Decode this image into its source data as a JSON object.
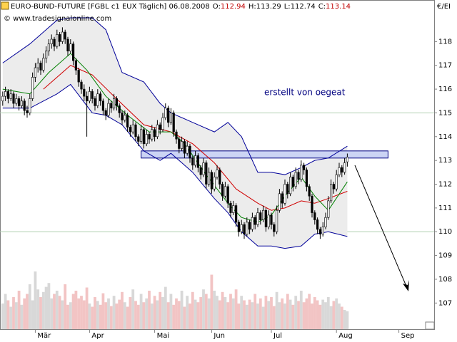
{
  "chart_data": {
    "type": "candlestick",
    "title": "EURO-BUND-FUTURE [FGBL c1 EUX  Täglich] 06.08.2008",
    "header": [
      {
        "label": "O:",
        "value": 112.94,
        "color": "#c00000"
      },
      {
        "label": "H:",
        "value": 113.29,
        "color": "#000000"
      },
      {
        "label": "L:",
        "value": 112.74,
        "color": "#000000"
      },
      {
        "label": "C:",
        "value": 113.14,
        "color": "#c00000"
      }
    ],
    "subtitle": "© www.tradesignalonline.com",
    "y_unit": "€/EI",
    "annotation": "erstellt von oegeat",
    "xlim": [
      0,
      160
    ],
    "xticks": [
      {
        "value": 13,
        "label": "Mär"
      },
      {
        "value": 33,
        "label": "Apr"
      },
      {
        "value": 57,
        "label": "Mai"
      },
      {
        "value": 78,
        "label": "Jun"
      },
      {
        "value": 100,
        "label": "Jul"
      },
      {
        "value": 124,
        "label": "Aug"
      },
      {
        "value": 147,
        "label": "Sep"
      }
    ],
    "ylim": [
      105.9,
      119.75
    ],
    "yticks": [
      107,
      108,
      109,
      110,
      111,
      112,
      113,
      114,
      115,
      116,
      117,
      118
    ],
    "grid": [
      110,
      115
    ],
    "resistance_zone": {
      "xlim": [
        52,
        143
      ],
      "ylim": [
        113.1,
        113.4
      ]
    },
    "ohlc": [
      [
        115.5,
        115.9,
        115.3,
        115.7
      ],
      [
        115.7,
        116.1,
        115.5,
        115.9
      ],
      [
        115.9,
        116.0,
        115.4,
        115.6
      ],
      [
        115.6,
        116.0,
        115.5,
        115.8
      ],
      [
        115.8,
        115.9,
        115.2,
        115.4
      ],
      [
        115.4,
        115.8,
        115.3,
        115.6
      ],
      [
        115.6,
        115.7,
        115.1,
        115.3
      ],
      [
        115.3,
        115.7,
        115.2,
        115.5
      ],
      [
        115.5,
        115.6,
        114.9,
        115.1
      ],
      [
        115.1,
        115.3,
        114.8,
        115.0
      ],
      [
        115.0,
        115.8,
        114.9,
        115.6
      ],
      [
        115.6,
        116.7,
        115.5,
        116.5
      ],
      [
        116.5,
        117.1,
        116.3,
        116.9
      ],
      [
        116.9,
        117.3,
        116.7,
        117.1
      ],
      [
        117.1,
        117.2,
        116.6,
        116.8
      ],
      [
        116.8,
        117.5,
        116.7,
        117.3
      ],
      [
        117.3,
        117.8,
        117.1,
        117.6
      ],
      [
        117.6,
        118.1,
        117.4,
        117.9
      ],
      [
        117.9,
        118.3,
        117.7,
        118.1
      ],
      [
        118.1,
        118.2,
        117.6,
        117.8
      ],
      [
        117.8,
        118.5,
        117.7,
        118.3
      ],
      [
        118.3,
        118.4,
        117.8,
        118.0
      ],
      [
        118.0,
        118.6,
        117.9,
        118.4
      ],
      [
        118.4,
        118.5,
        117.9,
        118.1
      ],
      [
        118.1,
        118.2,
        117.4,
        117.6
      ],
      [
        117.6,
        118.1,
        117.5,
        117.9
      ],
      [
        117.9,
        118.0,
        117.0,
        117.2
      ],
      [
        117.2,
        117.3,
        116.6,
        116.8
      ],
      [
        116.8,
        116.9,
        116.1,
        116.3
      ],
      [
        116.3,
        116.4,
        115.8,
        116.0
      ],
      [
        116.0,
        116.2,
        115.5,
        115.7
      ],
      [
        115.7,
        115.9,
        114.0,
        115.5
      ],
      [
        115.5,
        116.1,
        115.4,
        115.9
      ],
      [
        115.9,
        116.0,
        115.4,
        115.6
      ],
      [
        115.6,
        115.7,
        115.1,
        115.3
      ],
      [
        115.3,
        116.0,
        115.2,
        115.8
      ],
      [
        115.8,
        115.9,
        115.3,
        115.5
      ],
      [
        115.5,
        115.6,
        114.9,
        115.1
      ],
      [
        115.1,
        115.2,
        114.7,
        114.9
      ],
      [
        114.9,
        115.6,
        114.8,
        115.4
      ],
      [
        115.4,
        115.5,
        115.0,
        115.2
      ],
      [
        115.2,
        115.8,
        115.1,
        115.6
      ],
      [
        115.6,
        115.7,
        115.1,
        115.3
      ],
      [
        115.3,
        115.4,
        114.8,
        115.0
      ],
      [
        115.0,
        115.1,
        114.5,
        114.7
      ],
      [
        114.7,
        115.1,
        114.6,
        114.9
      ],
      [
        114.9,
        115.0,
        114.2,
        114.4
      ],
      [
        114.4,
        114.5,
        114.0,
        114.2
      ],
      [
        114.2,
        114.7,
        114.1,
        114.5
      ],
      [
        114.5,
        114.6,
        113.8,
        114.0
      ],
      [
        114.0,
        114.1,
        113.6,
        113.8
      ],
      [
        113.8,
        114.5,
        113.7,
        114.3
      ],
      [
        114.3,
        114.4,
        113.5,
        113.7
      ],
      [
        113.7,
        114.3,
        113.6,
        114.1
      ],
      [
        114.1,
        114.2,
        113.7,
        113.9
      ],
      [
        113.9,
        114.5,
        113.8,
        114.3
      ],
      [
        114.3,
        114.4,
        113.8,
        114.0
      ],
      [
        114.0,
        114.7,
        113.9,
        114.5
      ],
      [
        114.5,
        114.6,
        114.1,
        114.3
      ],
      [
        114.3,
        115.0,
        114.2,
        114.8
      ],
      [
        114.8,
        115.4,
        114.7,
        115.2
      ],
      [
        115.2,
        115.3,
        114.4,
        114.6
      ],
      [
        114.6,
        115.2,
        114.5,
        115.0
      ],
      [
        115.0,
        115.1,
        114.0,
        114.2
      ],
      [
        114.2,
        114.3,
        113.7,
        113.9
      ],
      [
        113.9,
        114.0,
        113.3,
        113.5
      ],
      [
        113.5,
        114.0,
        113.4,
        113.8
      ],
      [
        113.8,
        113.9,
        113.1,
        113.3
      ],
      [
        113.3,
        113.8,
        113.2,
        113.6
      ],
      [
        113.6,
        113.7,
        112.9,
        113.1
      ],
      [
        113.1,
        113.2,
        112.6,
        112.8
      ],
      [
        112.8,
        113.4,
        112.7,
        113.2
      ],
      [
        113.2,
        113.3,
        112.5,
        112.7
      ],
      [
        112.7,
        112.8,
        112.2,
        112.4
      ],
      [
        112.4,
        113.1,
        112.3,
        112.9
      ],
      [
        112.9,
        113.0,
        111.8,
        112.0
      ],
      [
        112.0,
        112.7,
        111.9,
        112.5
      ],
      [
        112.5,
        112.6,
        111.6,
        111.8
      ],
      [
        111.8,
        112.5,
        111.7,
        112.3
      ],
      [
        112.3,
        112.8,
        112.2,
        112.6
      ],
      [
        112.6,
        112.7,
        111.8,
        112.0
      ],
      [
        112.0,
        112.1,
        111.3,
        111.5
      ],
      [
        111.5,
        112.1,
        111.4,
        111.9
      ],
      [
        111.9,
        112.0,
        111.0,
        111.2
      ],
      [
        111.2,
        111.3,
        110.6,
        110.8
      ],
      [
        110.8,
        111.3,
        110.7,
        111.1
      ],
      [
        111.1,
        111.2,
        110.2,
        110.4
      ],
      [
        110.4,
        110.5,
        109.8,
        110.0
      ],
      [
        110.0,
        110.5,
        109.9,
        110.3
      ],
      [
        110.3,
        110.4,
        109.7,
        109.9
      ],
      [
        109.9,
        110.6,
        109.8,
        110.4
      ],
      [
        110.4,
        110.5,
        109.9,
        110.1
      ],
      [
        110.1,
        110.8,
        110.0,
        110.6
      ],
      [
        110.6,
        110.7,
        110.1,
        110.3
      ],
      [
        110.3,
        111.0,
        110.2,
        110.8
      ],
      [
        110.8,
        110.9,
        110.3,
        110.5
      ],
      [
        110.5,
        111.1,
        110.4,
        110.9
      ],
      [
        110.9,
        111.0,
        110.0,
        110.2
      ],
      [
        110.2,
        110.9,
        110.1,
        110.7
      ],
      [
        110.7,
        110.8,
        110.1,
        110.3
      ],
      [
        110.3,
        110.4,
        109.8,
        110.0
      ],
      [
        110.0,
        111.1,
        109.9,
        110.9
      ],
      [
        110.9,
        111.8,
        110.8,
        111.6
      ],
      [
        111.6,
        111.7,
        111.0,
        111.2
      ],
      [
        111.2,
        112.2,
        111.1,
        112.0
      ],
      [
        112.0,
        112.1,
        111.4,
        111.6
      ],
      [
        111.6,
        112.5,
        111.5,
        112.3
      ],
      [
        112.3,
        112.4,
        111.7,
        111.9
      ],
      [
        111.9,
        112.7,
        111.8,
        112.5
      ],
      [
        112.5,
        112.6,
        112.0,
        112.2
      ],
      [
        112.2,
        113.0,
        112.1,
        112.8
      ],
      [
        112.8,
        112.9,
        112.4,
        112.6
      ],
      [
        112.6,
        112.7,
        111.7,
        111.9
      ],
      [
        111.9,
        112.0,
        111.3,
        111.5
      ],
      [
        111.5,
        111.6,
        110.6,
        110.8
      ],
      [
        110.8,
        110.9,
        110.3,
        110.5
      ],
      [
        110.5,
        110.6,
        109.9,
        110.1
      ],
      [
        110.1,
        110.2,
        109.7,
        109.9
      ],
      [
        109.9,
        110.4,
        109.8,
        110.2
      ],
      [
        110.2,
        110.8,
        110.1,
        110.6
      ],
      [
        110.6,
        111.5,
        110.5,
        111.3
      ],
      [
        111.3,
        112.2,
        111.2,
        112.0
      ],
      [
        112.0,
        112.1,
        111.6,
        111.8
      ],
      [
        111.8,
        112.6,
        111.7,
        112.4
      ],
      [
        112.4,
        112.9,
        112.3,
        112.7
      ],
      [
        112.7,
        112.8,
        112.3,
        112.5
      ],
      [
        112.5,
        113.1,
        112.4,
        112.9
      ],
      [
        112.94,
        113.29,
        112.74,
        113.14
      ]
    ],
    "vlim": [
      0,
      100
    ],
    "volume": [
      40,
      55,
      45,
      35,
      50,
      42,
      60,
      38,
      48,
      55,
      70,
      45,
      90,
      62,
      50,
      58,
      66,
      72,
      48,
      55,
      60,
      52,
      45,
      70,
      38,
      42,
      55,
      60,
      48,
      52,
      45,
      65,
      40,
      35,
      50,
      44,
      38,
      56,
      42,
      48,
      36,
      52,
      40,
      46,
      58,
      42,
      35,
      50,
      62,
      44,
      38,
      55,
      42,
      48,
      60,
      40,
      52,
      45,
      58,
      50,
      66,
      42,
      55,
      38,
      48,
      44,
      60,
      35,
      52,
      40,
      58,
      46,
      42,
      50,
      62,
      55,
      48,
      85,
      60,
      52,
      45,
      58,
      50,
      42,
      55,
      48,
      62,
      40,
      52,
      45,
      38,
      46,
      42,
      55,
      40,
      48,
      35,
      52,
      44,
      50,
      36,
      58,
      42,
      48,
      40,
      55,
      46,
      38,
      52,
      44,
      60,
      42,
      48,
      55,
      40,
      50,
      45,
      38,
      46,
      42,
      50,
      36,
      44,
      48,
      40,
      35,
      30,
      28
    ],
    "bands": {
      "color": "#000099",
      "x": [
        1,
        11,
        21,
        26,
        34,
        39,
        45,
        53,
        59,
        63,
        71,
        79,
        84,
        89,
        95,
        100,
        105,
        111,
        116,
        121,
        128
      ],
      "upper": [
        117.1,
        117.9,
        118.9,
        119.0,
        119.0,
        118.5,
        116.7,
        116.3,
        115.4,
        115.0,
        114.6,
        114.2,
        114.6,
        114.0,
        112.5,
        112.5,
        112.4,
        112.7,
        113.0,
        113.1,
        113.6
      ],
      "lower": [
        115.2,
        115.2,
        115.8,
        116.2,
        115.0,
        114.9,
        114.5,
        113.4,
        113.0,
        113.3,
        112.5,
        111.4,
        110.8,
        110.0,
        109.4,
        109.4,
        109.3,
        109.4,
        109.9,
        110.0,
        109.8
      ]
    },
    "series": [
      {
        "color": "#d00000",
        "x": [
          16,
          26,
          34,
          42,
          53,
          63,
          71,
          79,
          87,
          95,
          100,
          105,
          111,
          116,
          121,
          128
        ],
        "values": [
          116.0,
          117.0,
          116.6,
          115.7,
          114.5,
          114.2,
          113.7,
          112.9,
          111.8,
          111.2,
          110.9,
          111.0,
          111.3,
          111.2,
          111.4,
          111.7
        ]
      },
      {
        "color": "#008000",
        "x": [
          1,
          11,
          18,
          26,
          32,
          39,
          47,
          55,
          63,
          68,
          76,
          84,
          89,
          95,
          100,
          105,
          111,
          116,
          121,
          128
        ],
        "values": [
          116.0,
          115.8,
          116.7,
          117.5,
          116.8,
          115.7,
          114.9,
          114.2,
          114.2,
          113.7,
          112.4,
          111.2,
          110.6,
          110.4,
          110.7,
          111.5,
          112.3,
          111.5,
          110.9,
          112.1
        ]
      }
    ]
  }
}
